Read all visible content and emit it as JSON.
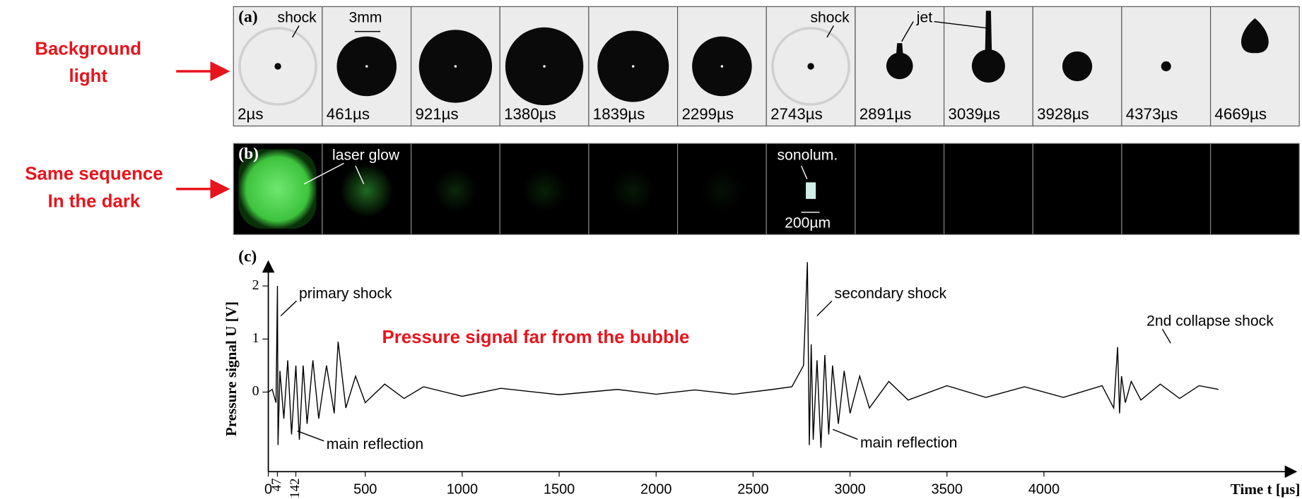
{
  "side_labels": [
    [
      "Background",
      "light"
    ],
    [
      "Same sequence",
      "In the dark"
    ]
  ],
  "panel_a": {
    "label": "(a)",
    "times": [
      "2µs",
      "461µs",
      "921µs",
      "1380µs",
      "1839µs",
      "2299µs",
      "2743µs",
      "2891µs",
      "3039µs",
      "3928µs",
      "4373µs",
      "4669µs"
    ],
    "annotations": [
      "shock",
      "3mm",
      "shock",
      "jet"
    ]
  },
  "panel_b": {
    "label": "(b)",
    "annotations": [
      "laser glow",
      "sonolum.",
      "200µm"
    ]
  },
  "chart_data": {
    "type": "line",
    "panel_label": "(c)",
    "x_label": "Time t [µs]",
    "y_label": "Pressure signal U [V]",
    "annotations": [
      "primary shock",
      "main reflection",
      "secondary shock",
      "main reflection",
      "2nd collapse shock",
      "Pressure signal far from the bubble"
    ],
    "color": "#000000",
    "x": [
      0,
      20,
      40,
      47,
      50,
      60,
      80,
      100,
      120,
      142,
      160,
      180,
      200,
      230,
      260,
      300,
      340,
      360,
      400,
      450,
      500,
      600,
      700,
      800,
      1000,
      1200,
      1500,
      1800,
      2000,
      2200,
      2400,
      2600,
      2700,
      2760,
      2780,
      2790,
      2800,
      2810,
      2830,
      2850,
      2870,
      2890,
      2910,
      2940,
      2970,
      3000,
      3050,
      3100,
      3200,
      3300,
      3500,
      3700,
      3900,
      4100,
      4300,
      4360,
      4380,
      4390,
      4400,
      4420,
      4450,
      4500,
      4600,
      4700,
      4800,
      4900
    ],
    "values": [
      0,
      0.05,
      -0.2,
      2.0,
      -1.0,
      0.4,
      -0.5,
      0.6,
      -0.8,
      0.5,
      -0.9,
      0.5,
      -0.6,
      0.6,
      -0.5,
      0.5,
      -0.4,
      0.95,
      -0.3,
      0.3,
      -0.2,
      0.15,
      -0.12,
      0.1,
      -0.08,
      0.07,
      -0.05,
      0.05,
      -0.04,
      0.04,
      -0.04,
      0.05,
      0.1,
      0.5,
      2.45,
      -1.0,
      0.9,
      -0.9,
      0.6,
      -1.05,
      0.7,
      -0.8,
      0.5,
      -0.6,
      0.4,
      -0.4,
      0.3,
      -0.3,
      0.2,
      -0.15,
      0.12,
      -0.1,
      0.1,
      -0.1,
      0.12,
      -0.3,
      0.85,
      -0.4,
      0.3,
      -0.2,
      0.2,
      -0.15,
      0.15,
      -0.12,
      0.12,
      0.05
    ],
    "xlim": [
      0,
      5300
    ],
    "ylim": [
      -1.5,
      2.4
    ],
    "xticks": [
      0,
      47,
      142,
      500,
      1000,
      1500,
      2000,
      2500,
      3000,
      3500,
      4000
    ],
    "yticks": [
      0,
      1,
      2
    ]
  }
}
